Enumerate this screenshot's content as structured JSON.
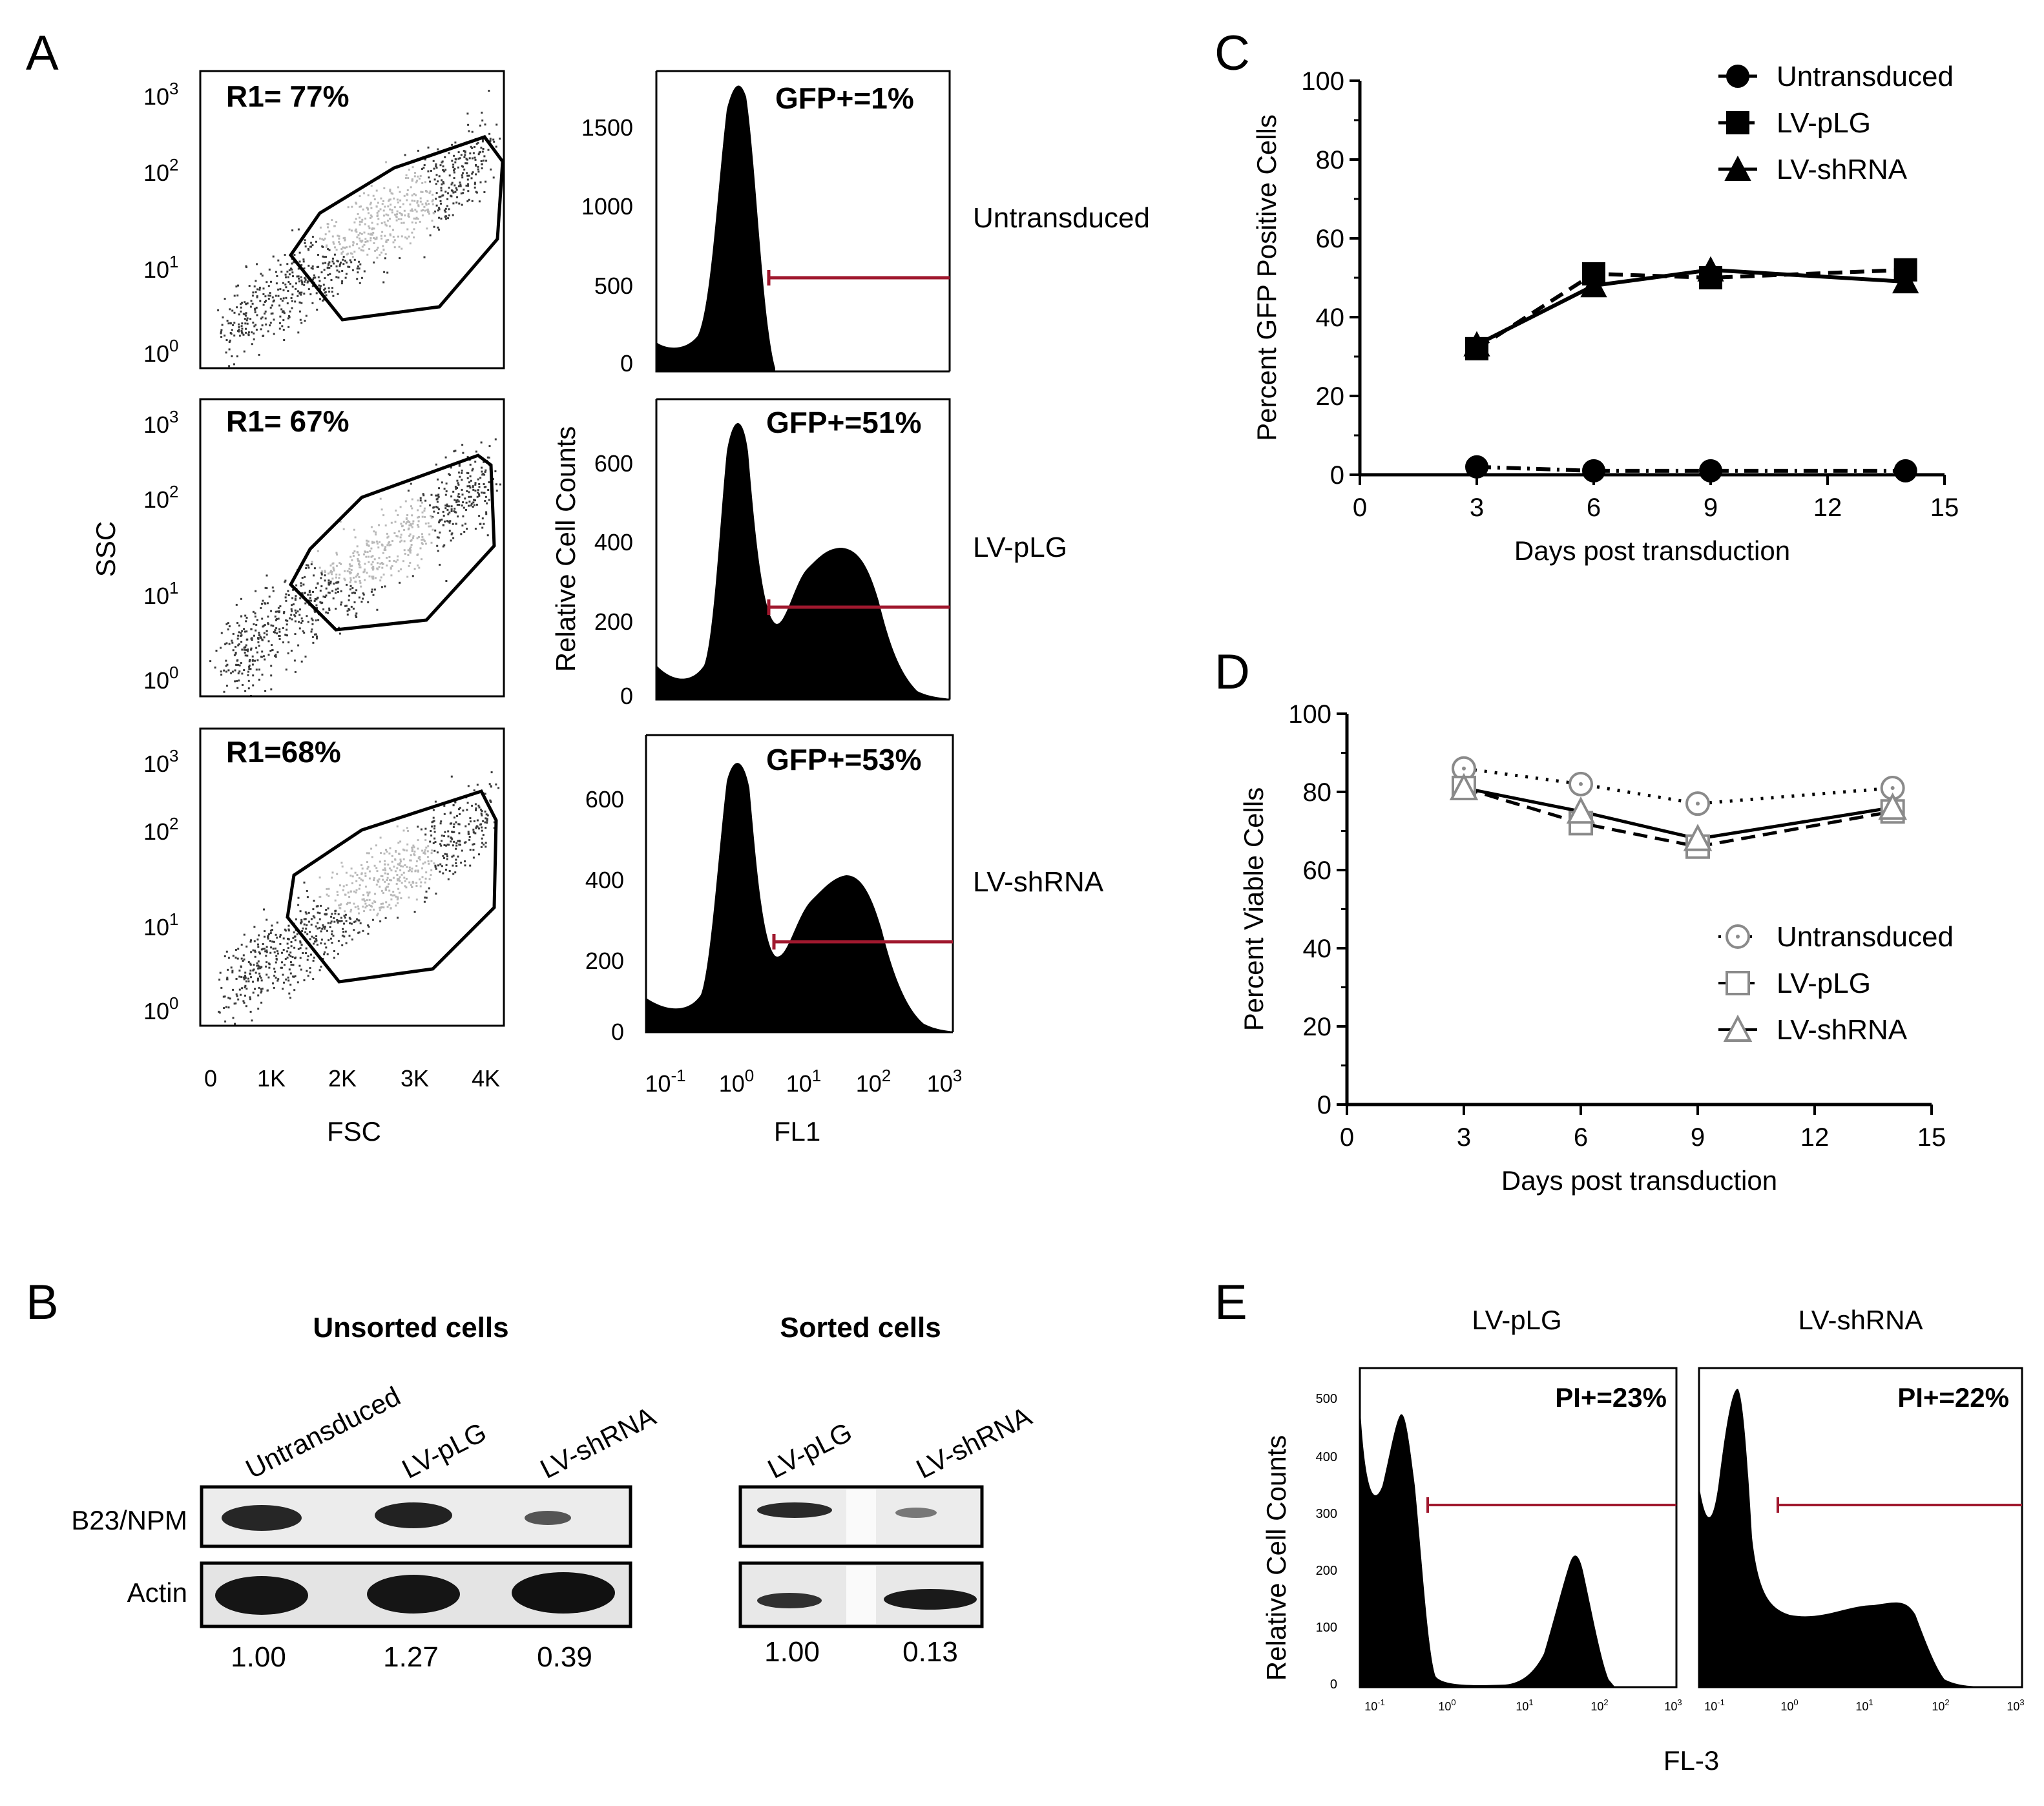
{
  "panel_letters": {
    "a": "A",
    "b": "B",
    "c": "C",
    "d": "D",
    "e": "E"
  },
  "panel_a": {
    "scatter_ylabel": "SSC",
    "scatter_xlabel": "FSC",
    "hist_ylabel": "Relative Cell Counts",
    "hist_xlabel": "FL1",
    "scatter_x_ticks": [
      "0",
      "1K",
      "2K",
      "3K",
      "4K"
    ],
    "scatter_y_ticks": [
      {
        "base": "10",
        "exp": "3"
      },
      {
        "base": "10",
        "exp": "2"
      },
      {
        "base": "10",
        "exp": "1"
      },
      {
        "base": "10",
        "exp": "0"
      }
    ],
    "hist_x_ticks": [
      {
        "base": "10",
        "exp": "-1"
      },
      {
        "base": "10",
        "exp": "0"
      },
      {
        "base": "10",
        "exp": "1"
      },
      {
        "base": "10",
        "exp": "2"
      },
      {
        "base": "10",
        "exp": "3"
      }
    ],
    "rows": [
      {
        "condition": "Untransduced",
        "r1_label": "R1= 77%",
        "gfp_label": "GFP+=1%",
        "hist_y_ticks": [
          "1500",
          "1000",
          "500",
          "0"
        ]
      },
      {
        "condition": "LV-pLG",
        "r1_label": "R1= 67%",
        "gfp_label": "GFP+=51%",
        "hist_y_ticks": [
          "600",
          "400",
          "200",
          "0"
        ]
      },
      {
        "condition": "LV-shRNA",
        "r1_label": "R1=68%",
        "gfp_label": "GFP+=53%",
        "hist_y_ticks": [
          "600",
          "400",
          "200",
          "0"
        ]
      }
    ]
  },
  "panel_b": {
    "unsorted_title": "Unsorted cells",
    "sorted_title": "Sorted cells",
    "unsorted_lanes": [
      "Untransduced",
      "LV-pLG",
      "LV-shRNA"
    ],
    "sorted_lanes": [
      "LV-pLG",
      "LV-shRNA"
    ],
    "row_labels": [
      "B23/NPM",
      "Actin"
    ],
    "unsorted_values": [
      "1.00",
      "1.27",
      "0.39"
    ],
    "sorted_values": [
      "1.00",
      "0.13"
    ],
    "band_color": "#1a1a1a"
  },
  "panel_e": {
    "ylabel": "Relative Cell Counts",
    "xlabel": "FL-3",
    "y_ticks": [
      "500",
      "400",
      "300",
      "200",
      "100",
      "0"
    ],
    "x_ticks": [
      {
        "base": "10",
        "exp": "-1"
      },
      {
        "base": "10",
        "exp": "0"
      },
      {
        "base": "10",
        "exp": "1"
      },
      {
        "base": "10",
        "exp": "2"
      },
      {
        "base": "10",
        "exp": "3"
      }
    ],
    "panels": [
      {
        "title": "LV-pLG",
        "label": "PI+=23%"
      },
      {
        "title": "LV-shRNA",
        "label": "PI+=22%"
      }
    ]
  },
  "gate_color": "#a0182e",
  "chart_data": [
    {
      "id": "C",
      "type": "line",
      "xlabel": "Days post transduction",
      "ylabel": "Percent GFP Positive Cells",
      "xlim": [
        0,
        15
      ],
      "ylim": [
        0,
        100
      ],
      "x_ticks": [
        "0",
        "3",
        "6",
        "9",
        "12",
        "15"
      ],
      "y_ticks": [
        "0",
        "20",
        "40",
        "60",
        "80",
        "100"
      ],
      "x": [
        3,
        6,
        9,
        14
      ],
      "legend_position": "top-right",
      "series": [
        {
          "name": "Untransduced",
          "marker": "circle",
          "style": "dashdot",
          "values": [
            2,
            1,
            1,
            1
          ]
        },
        {
          "name": "LV-pLG",
          "marker": "square",
          "style": "dashed",
          "values": [
            32,
            51,
            50,
            52
          ]
        },
        {
          "name": "LV-shRNA",
          "marker": "triangle",
          "style": "solid",
          "values": [
            33,
            48,
            52,
            49
          ]
        }
      ]
    },
    {
      "id": "D",
      "type": "line",
      "xlabel": "Days post transduction",
      "ylabel": "Percent Viable Cells",
      "xlim": [
        0,
        15
      ],
      "ylim": [
        0,
        100
      ],
      "x_ticks": [
        "0",
        "3",
        "6",
        "9",
        "12",
        "15"
      ],
      "y_ticks": [
        "0",
        "20",
        "40",
        "60",
        "80",
        "100"
      ],
      "x": [
        3,
        6,
        9,
        14
      ],
      "legend_position": "right",
      "series": [
        {
          "name": "Untransduced",
          "marker": "open-circle",
          "style": "dotted",
          "values": [
            86,
            82,
            77,
            81
          ]
        },
        {
          "name": "LV-pLG",
          "marker": "open-square",
          "style": "dashed",
          "values": [
            81,
            72,
            66,
            75
          ]
        },
        {
          "name": "LV-shRNA",
          "marker": "open-triangle",
          "style": "solid",
          "values": [
            81,
            75,
            68,
            76
          ]
        }
      ]
    }
  ]
}
